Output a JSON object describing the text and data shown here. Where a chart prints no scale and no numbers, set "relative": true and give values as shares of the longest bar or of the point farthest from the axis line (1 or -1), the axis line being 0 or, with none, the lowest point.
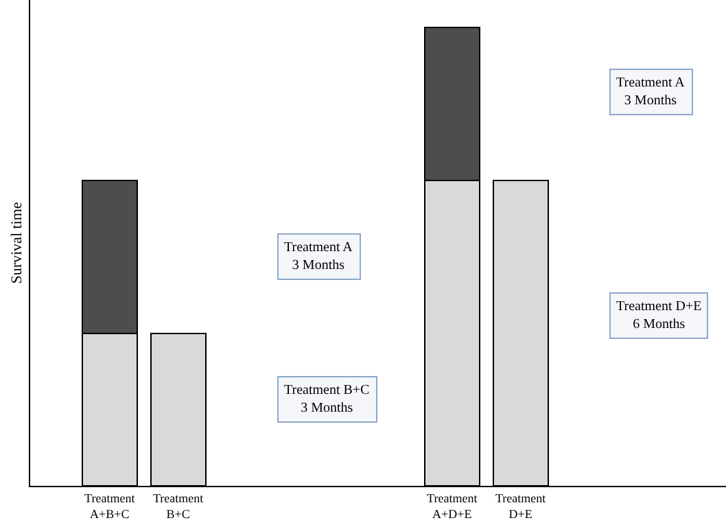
{
  "chart_data": {
    "type": "bar",
    "stacked": true,
    "relative": true,
    "ylabel": "Survival time",
    "categories": [
      "Treatment A+B+C",
      "Treatment B+C",
      null,
      null,
      null,
      "Treatment A+D+E",
      "Treatment D+E"
    ],
    "series": [
      {
        "color": "#d9d9d9",
        "values": [
          0.333,
          0.333,
          null,
          null,
          null,
          0.667,
          0.667
        ]
      },
      {
        "color": "#4d4d4d",
        "values": [
          0.333,
          null,
          null,
          null,
          null,
          0.333,
          null
        ]
      }
    ],
    "annotations": [
      "Treatment A\n3 Months",
      "Treatment B+C\n3 Months",
      "Treatment A\n3 Months",
      "Treatment D+E\n6 Months"
    ]
  }
}
